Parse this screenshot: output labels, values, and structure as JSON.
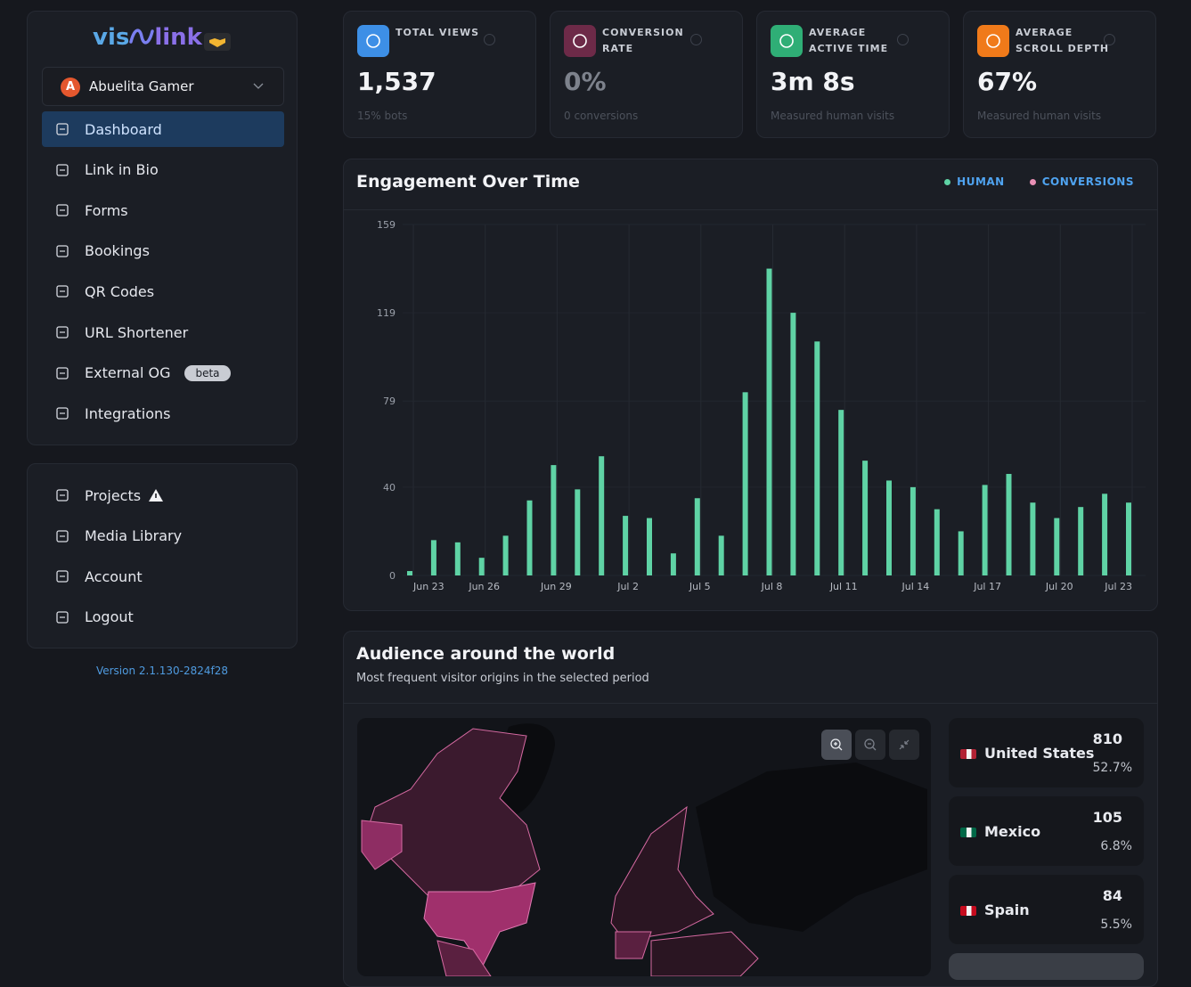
{
  "sidebar": {
    "logo": {
      "left": "vis",
      "right": "link"
    },
    "workspace": {
      "initial": "A",
      "name": "Abuelita Gamer"
    },
    "nav": [
      {
        "label": "Dashboard"
      },
      {
        "label": "Link in Bio"
      },
      {
        "label": "Forms"
      },
      {
        "label": "Bookings"
      },
      {
        "label": "QR Codes"
      },
      {
        "label": "URL Shortener"
      },
      {
        "label": "External OG",
        "badge": "beta"
      },
      {
        "label": "Integrations"
      }
    ],
    "nav2": [
      {
        "label": "Projects"
      },
      {
        "label": "Media Library"
      },
      {
        "label": "Account"
      },
      {
        "label": "Logout"
      }
    ],
    "version": "Version 2.1.130-2824f28"
  },
  "stats": [
    {
      "label": "TOTAL VIEWS",
      "value": "1,537",
      "note": "15% bots"
    },
    {
      "label": "CONVERSION RATE",
      "value": "0%",
      "note": "0 conversions"
    },
    {
      "label": "AVERAGE ACTIVE TIME",
      "value": "3m 8s",
      "note": "Measured human visits"
    },
    {
      "label": "AVERAGE SCROLL DEPTH",
      "value": "67%",
      "note": "Measured human visits"
    }
  ],
  "chart_data": {
    "type": "bar",
    "title": "Engagement Over Time",
    "categories": [
      "Jun 23",
      null,
      null,
      "Jun 26",
      null,
      null,
      "Jun 29",
      null,
      null,
      "Jul 2",
      null,
      null,
      "Jul 5",
      null,
      null,
      "Jul 8",
      null,
      null,
      "Jul 11",
      null,
      null,
      "Jul 14",
      null,
      null,
      "Jul 17",
      null,
      null,
      "Jul 20",
      null,
      null,
      "Jul 23"
    ],
    "series": [
      {
        "name": "HUMAN",
        "color": "#5fd3a5",
        "values": [
          2,
          16,
          15,
          8,
          18,
          34,
          50,
          39,
          54,
          27,
          26,
          10,
          35,
          18,
          83,
          139,
          119,
          106,
          75,
          52,
          43,
          40,
          30,
          20,
          41,
          46,
          33,
          26,
          31,
          37,
          33
        ]
      },
      {
        "name": "CONVERSIONS",
        "color": "#e88fb5",
        "values": [
          0,
          0,
          0,
          0,
          0,
          0,
          0,
          0,
          0,
          0,
          0,
          0,
          0,
          0,
          0,
          0,
          0,
          0,
          0,
          0,
          0,
          0,
          0,
          0,
          0,
          0,
          0,
          0,
          0,
          0,
          0
        ]
      }
    ],
    "ylim": [
      0,
      159
    ],
    "yticks": [
      0,
      40,
      79,
      119,
      159
    ],
    "grid": true,
    "legend": "top-right"
  },
  "audience": {
    "title": "Audience around the world",
    "subtitle": "Most frequent visitor origins in the selected period",
    "countries": [
      {
        "name": "United States",
        "count": 810,
        "share": "52.7%"
      },
      {
        "name": "Mexico",
        "count": 105,
        "share": "6.8%"
      },
      {
        "name": "Spain",
        "count": 84,
        "share": "5.5%"
      }
    ]
  }
}
